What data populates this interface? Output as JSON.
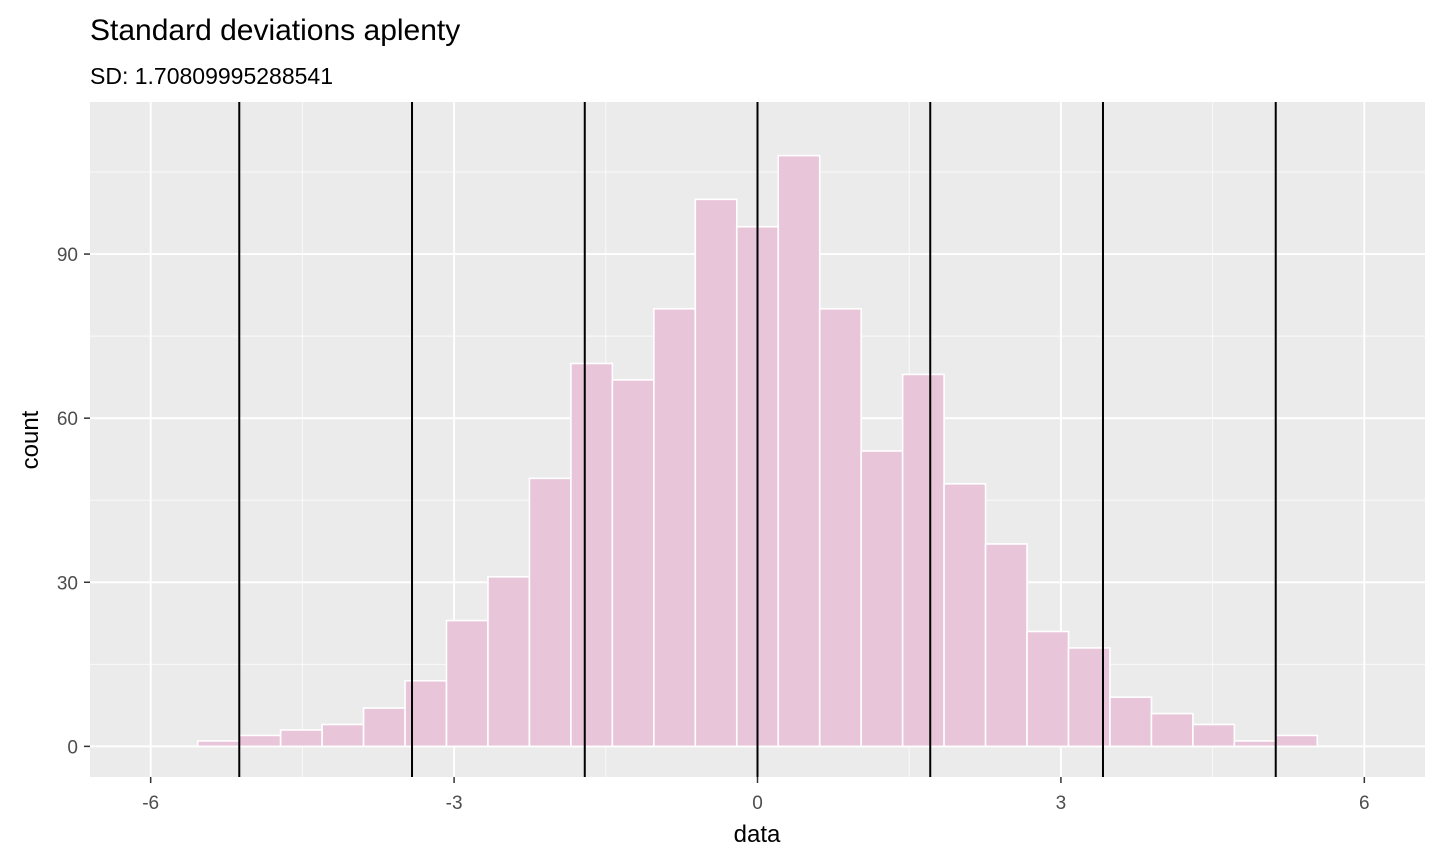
{
  "chart_data": {
    "type": "bar",
    "title": "Standard deviations aplenty",
    "subtitle": "SD: 1.70809995288541",
    "xlabel": "data",
    "ylabel": "count",
    "xlim": [
      -6.6,
      6.6
    ],
    "ylim": [
      -5.6,
      117.8
    ],
    "x_ticks": [
      -6,
      -3,
      0,
      3,
      6
    ],
    "x_tick_labels": [
      "-6",
      "-3",
      "0",
      "3",
      "6"
    ],
    "y_ticks": [
      0,
      30,
      60,
      90
    ],
    "y_tick_labels": [
      "0",
      "30",
      "60",
      "90"
    ],
    "grid": true,
    "bin_width": 0.41,
    "bins": [
      {
        "center": -5.33,
        "count": 1
      },
      {
        "center": -4.92,
        "count": 2
      },
      {
        "center": -4.51,
        "count": 3
      },
      {
        "center": -4.1,
        "count": 4
      },
      {
        "center": -3.69,
        "count": 7
      },
      {
        "center": -3.28,
        "count": 12
      },
      {
        "center": -2.87,
        "count": 23
      },
      {
        "center": -2.46,
        "count": 31
      },
      {
        "center": -2.05,
        "count": 49
      },
      {
        "center": -1.64,
        "count": 70
      },
      {
        "center": -1.23,
        "count": 67
      },
      {
        "center": -0.82,
        "count": 80
      },
      {
        "center": -0.41,
        "count": 100
      },
      {
        "center": 0.0,
        "count": 95
      },
      {
        "center": 0.41,
        "count": 108
      },
      {
        "center": 0.82,
        "count": 80
      },
      {
        "center": 1.23,
        "count": 54
      },
      {
        "center": 1.64,
        "count": 68
      },
      {
        "center": 2.05,
        "count": 48
      },
      {
        "center": 2.46,
        "count": 37
      },
      {
        "center": 2.87,
        "count": 21
      },
      {
        "center": 3.28,
        "count": 18
      },
      {
        "center": 3.69,
        "count": 9
      },
      {
        "center": 4.1,
        "count": 6
      },
      {
        "center": 4.51,
        "count": 4
      },
      {
        "center": 4.92,
        "count": 1
      },
      {
        "center": 5.33,
        "count": 2
      }
    ],
    "vlines": [
      -5.124,
      -3.416,
      -1.708,
      0,
      1.708,
      3.416,
      5.124
    ],
    "colors": {
      "panel": "#ebebeb",
      "grid": "#ffffff",
      "bar_fill": "#e9c5d9",
      "bar_stroke": "#ffffff",
      "vline": "#000000",
      "tick_text": "#4d4d4d",
      "tick_mark": "#333333"
    }
  }
}
